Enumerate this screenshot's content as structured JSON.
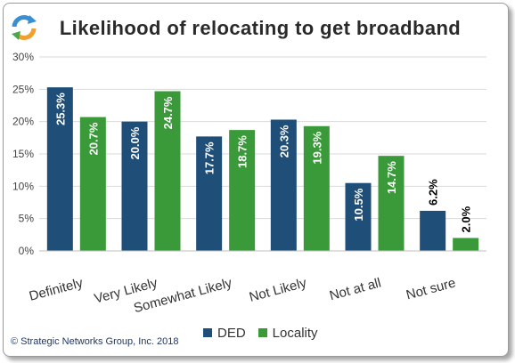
{
  "chart_data": {
    "type": "bar",
    "title": "Likelihood of relocating to get broadband",
    "categories": [
      "Definitely",
      "Very Likely",
      "Somewhat Likely",
      "Not Likely",
      "Not at all",
      "Not sure"
    ],
    "series": [
      {
        "name": "DED",
        "values": [
          25.3,
          20.0,
          17.7,
          20.3,
          10.5,
          6.2
        ],
        "labels": [
          "25.3%",
          "20.0%",
          "17.7%",
          "20.3%",
          "10.5%",
          "6.2%"
        ],
        "color": "#1f4e79"
      },
      {
        "name": "Locality",
        "values": [
          20.7,
          24.7,
          18.7,
          19.3,
          14.7,
          2.0
        ],
        "labels": [
          "20.7%",
          "24.7%",
          "18.7%",
          "19.3%",
          "14.7%",
          "2.0%"
        ],
        "color": "#3a9a3a"
      }
    ],
    "yticks": [
      "0%",
      "5%",
      "10%",
      "15%",
      "20%",
      "25%",
      "30%"
    ],
    "ylim": [
      0,
      30
    ],
    "grid": true,
    "legend_position": "bottom"
  },
  "footer": {
    "copyright": "© Strategic Networks Group, Inc. 2018"
  },
  "colors": {
    "dark_label": "#000000",
    "light_label": "#ffffff",
    "grid": "#d9d9d9"
  },
  "logo": {
    "icon": "refresh-arrows-icon"
  }
}
